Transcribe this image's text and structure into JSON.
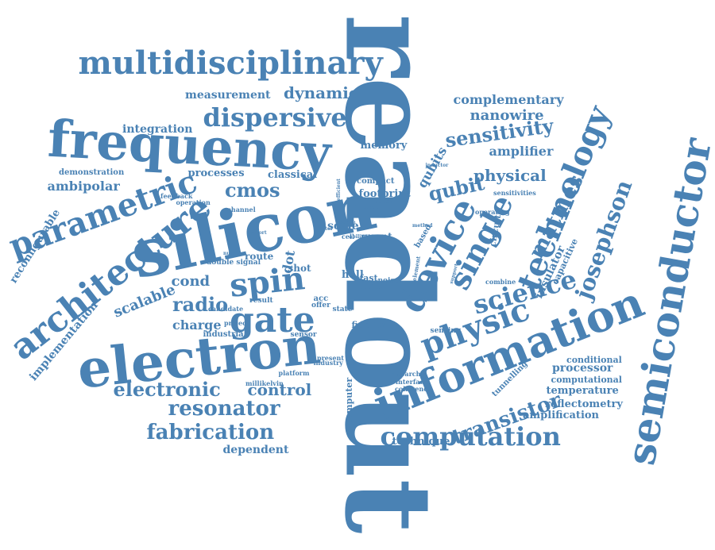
{
  "theme": {
    "word_color": "#4a82b4",
    "background": "#ffffff"
  },
  "words": [
    "readout",
    "silicon",
    "frequency",
    "electron",
    "semiconductor",
    "information",
    "spin",
    "device",
    "multidisciplinary",
    "architecture",
    "parametric",
    "gate",
    "single",
    "technology",
    "physic",
    "science",
    "josephson",
    "dispersive",
    "computation",
    "fabrication",
    "resonator",
    "electronic",
    "matmes",
    "transistor",
    "cmos",
    "radio",
    "sensitivity",
    "qubit",
    "qubits",
    "dynamic",
    "physical",
    "control",
    "nanowire",
    "complementary",
    "measurement",
    "ambipolar",
    "integration",
    "amplifier",
    "memory",
    "scalable",
    "charge",
    "cond",
    "implementation",
    "reconfigurable",
    "dependent",
    "technique",
    "processes",
    "classical",
    "demonstration",
    "insulator",
    "circuit",
    "capacitive",
    "processor",
    "temperature",
    "reflectometry",
    "amplification",
    "computational",
    "conditional",
    "tunnelling",
    "footprint",
    "compact",
    "scale",
    "quant",
    "hall",
    "time",
    "dot",
    "route",
    "shot",
    "fast",
    "noise",
    "fidelity",
    "sensor",
    "industrial",
    "project",
    "acc",
    "offer",
    "state",
    "result",
    "computer",
    "coherence",
    "interface",
    "research",
    "sensing",
    "candidate",
    "millikelvin",
    "platform",
    "industry",
    "present",
    "feedback",
    "operation",
    "channel",
    "double signal",
    "number",
    "report",
    "combine",
    "operating",
    "sensitivities",
    "inductor",
    "solution",
    "support",
    "based",
    "element",
    "speed",
    "cell",
    "factor",
    "reduce",
    "method",
    "ability",
    "efficient",
    "input"
  ]
}
